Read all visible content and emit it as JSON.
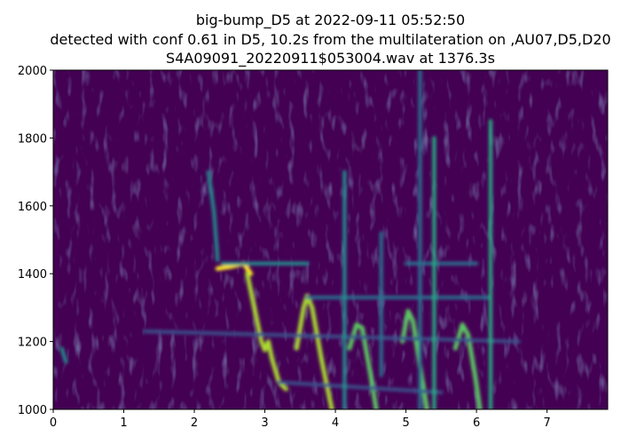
{
  "chart_data": {
    "type": "heatmap",
    "title_lines": [
      "big-bump_D5 at 2022-09-11 05:52:50",
      "detected with conf 0.61 in D5, 10.2s from the multilateration on ,AU07,D5,D20",
      "S4A09091_20220911$053004.wav at 1376.3s"
    ],
    "xlabel": "",
    "ylabel": "",
    "xlim": [
      0,
      7.86
    ],
    "ylim": [
      1000,
      2000
    ],
    "xticks": [
      "0",
      "1",
      "2",
      "3",
      "4",
      "5",
      "6",
      "7"
    ],
    "yticks": [
      "1000",
      "1200",
      "1400",
      "1600",
      "1800",
      "2000"
    ],
    "colormap": "viridis",
    "background_color": "#440154",
    "tracks": [
      {
        "intensity": 0.5,
        "points": [
          [
            2.2,
            1700
          ],
          [
            2.28,
            1580
          ],
          [
            2.33,
            1440
          ]
        ]
      },
      {
        "intensity": 0.95,
        "points": [
          [
            2.33,
            1415
          ],
          [
            2.5,
            1420
          ],
          [
            2.7,
            1430
          ],
          [
            2.8,
            1400
          ]
        ]
      },
      {
        "intensity": 0.85,
        "points": [
          [
            2.75,
            1400
          ],
          [
            2.85,
            1300
          ],
          [
            2.95,
            1200
          ],
          [
            3.0,
            1175
          ],
          [
            3.05,
            1200
          ],
          [
            3.1,
            1150
          ],
          [
            3.2,
            1080
          ],
          [
            3.3,
            1060
          ]
        ]
      },
      {
        "intensity": 0.9,
        "points": [
          [
            3.45,
            1180
          ],
          [
            3.55,
            1300
          ],
          [
            3.6,
            1335
          ],
          [
            3.67,
            1300
          ],
          [
            3.8,
            1150
          ],
          [
            3.95,
            1000
          ]
        ]
      },
      {
        "intensity": 0.8,
        "points": [
          [
            4.2,
            1180
          ],
          [
            4.3,
            1250
          ],
          [
            4.38,
            1240
          ],
          [
            4.5,
            1100
          ],
          [
            4.58,
            1000
          ]
        ]
      },
      {
        "intensity": 0.8,
        "points": [
          [
            4.95,
            1200
          ],
          [
            5.03,
            1290
          ],
          [
            5.1,
            1260
          ],
          [
            5.22,
            1100
          ],
          [
            5.3,
            1000
          ]
        ]
      },
      {
        "intensity": 0.75,
        "points": [
          [
            5.7,
            1180
          ],
          [
            5.8,
            1250
          ],
          [
            5.88,
            1220
          ],
          [
            5.98,
            1100
          ],
          [
            6.05,
            1000
          ]
        ]
      },
      {
        "intensity": 0.55,
        "points": [
          [
            2.4,
            1430
          ],
          [
            3.6,
            1430
          ]
        ]
      },
      {
        "intensity": 0.35,
        "points": [
          [
            3.6,
            1330
          ],
          [
            6.2,
            1330
          ]
        ]
      },
      {
        "intensity": 0.3,
        "points": [
          [
            1.3,
            1230
          ],
          [
            6.6,
            1200
          ]
        ]
      },
      {
        "intensity": 0.3,
        "points": [
          [
            3.2,
            1080
          ],
          [
            5.5,
            1050
          ]
        ]
      },
      {
        "intensity": 0.35,
        "points": [
          [
            5.0,
            1430
          ],
          [
            6.0,
            1430
          ]
        ]
      },
      {
        "intensity": 0.45,
        "points": [
          [
            4.13,
            1000
          ],
          [
            4.13,
            1700
          ]
        ]
      },
      {
        "intensity": 0.4,
        "points": [
          [
            4.65,
            1100
          ],
          [
            4.65,
            1520
          ]
        ]
      },
      {
        "intensity": 0.6,
        "points": [
          [
            5.4,
            1000
          ],
          [
            5.4,
            1800
          ]
        ]
      },
      {
        "intensity": 0.35,
        "points": [
          [
            5.2,
            1000
          ],
          [
            5.2,
            2000
          ]
        ]
      },
      {
        "intensity": 0.6,
        "points": [
          [
            6.2,
            1000
          ],
          [
            6.2,
            1850
          ]
        ]
      },
      {
        "intensity": 0.45,
        "points": [
          [
            0.12,
            1180
          ],
          [
            0.18,
            1140
          ]
        ]
      }
    ]
  }
}
